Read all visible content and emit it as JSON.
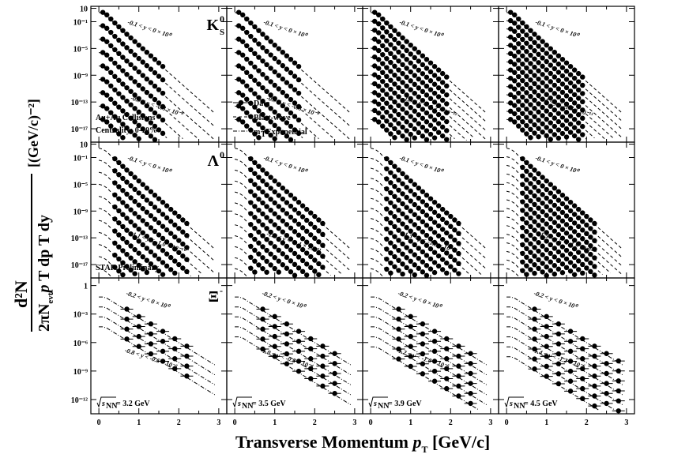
{
  "chart_data": {
    "type": "scatter",
    "xlabel": "Transverse Momentum",
    "xlabel_var": "p",
    "xlabel_sub": "T",
    "xlabel_unit": "[GeV/c]",
    "ylabel_num": "d²N",
    "ylabel_den": "2πN",
    "ylabel_den_sub": "evt",
    "ylabel_den_rest": "p",
    "ylabel_den_rest2": "T dp T dy",
    "ylabel_unit": "[(GeV/c)⁻²]",
    "xlim": [
      -0.2,
      3.2
    ],
    "xticks": [
      "0",
      "1",
      "2",
      "3"
    ],
    "legend": {
      "data": "Data",
      "blastwave": "Blast-wave",
      "mt": "m",
      "mt_sub": "T",
      "mt_rest": "Exponential"
    },
    "system_label": "Au+Au Collisions",
    "centrality_label": "Centrality: 0-10%",
    "preliminary": "STAR Preliminary",
    "preliminary_color": "#e8151b",
    "energies": [
      "3.2 GeV",
      "3.5 GeV",
      "3.9 GeV",
      "4.5 GeV"
    ],
    "energy_prefix": "s",
    "energy_sub": "NN",
    "energy_eq": " = ",
    "rows": [
      {
        "particle": "K",
        "particle_sub": "S",
        "particle_sup": "0",
        "yticks": [
          "10",
          "10⁻¹",
          "10⁻⁵",
          "10⁻⁹",
          "10⁻¹³",
          "10⁻¹⁷"
        ],
        "ylog": [
          1,
          -1,
          -5,
          -9,
          -13,
          -17
        ],
        "ylim_log": [
          -19,
          1.3
        ],
        "top_label": "-0.1 < y < 0 × 10⁰",
        "bottom_labels": [
          "-0.9 < y < -0.8 × 10⁻⁸",
          "-0.9 < y < -0.8 × 10⁻⁸",
          "-1.3 < y < -1.2 × 10⁻¹²",
          "-1.4 < y < -1.3 × 10⁻¹³"
        ],
        "n_curves": [
          9,
          9,
          13,
          14
        ],
        "pt_range": [
          [
            0.1,
            1.6
          ],
          [
            0.1,
            1.6
          ],
          [
            0.1,
            1.9
          ],
          [
            0.1,
            1.9
          ]
        ]
      },
      {
        "particle": "Λ",
        "particle_sup": "0",
        "yticks": [
          "10",
          "10⁻¹",
          "10⁻⁵",
          "10⁻⁹",
          "10⁻¹³",
          "10⁻¹⁷"
        ],
        "ylog": [
          1,
          -1,
          -5,
          -9,
          -13,
          -17
        ],
        "ylim_log": [
          -19,
          1.3
        ],
        "top_label": "-0.1 < y < 0 × 10⁰",
        "bottom_labels": [
          "-1.1 < y < -1.0 × 10⁻¹⁰",
          "-1.2 < y < -1.1 × 10⁻¹¹",
          "-1.3 < y < -1.2 × 10⁻¹²",
          "-1.5 < y < -1.4 × 10⁻¹⁴"
        ],
        "n_curves": [
          11,
          12,
          13,
          15
        ],
        "pt_range": [
          [
            0.4,
            2.2
          ],
          [
            0.4,
            2.2
          ],
          [
            0.4,
            2.2
          ],
          [
            0.4,
            2.2
          ]
        ]
      },
      {
        "particle": "Ξ",
        "particle_sup": "-",
        "yticks": [
          "1",
          "10⁻³",
          "10⁻⁶",
          "10⁻⁹",
          "10⁻¹²"
        ],
        "ylog": [
          0,
          -3,
          -6,
          -9,
          -12
        ],
        "ylim_log": [
          -13.5,
          0.8
        ],
        "top_label": "-0.2 < y < 0 × 10⁰",
        "bottom_labels": [
          "-0.8 < y < -0.6 × 10⁻³",
          "-1.0 < y < -0.8 × 10⁻⁴",
          "-1.2 < y < -1.0 × 10⁻⁵",
          "-1.4 < y < -1.2 × 10⁻⁶"
        ],
        "n_curves": [
          4,
          5,
          6,
          7
        ],
        "pt_range": [
          [
            0.7,
            2.3
          ],
          [
            0.7,
            2.5
          ],
          [
            0.7,
            2.6
          ],
          [
            0.7,
            2.8
          ]
        ]
      }
    ]
  }
}
